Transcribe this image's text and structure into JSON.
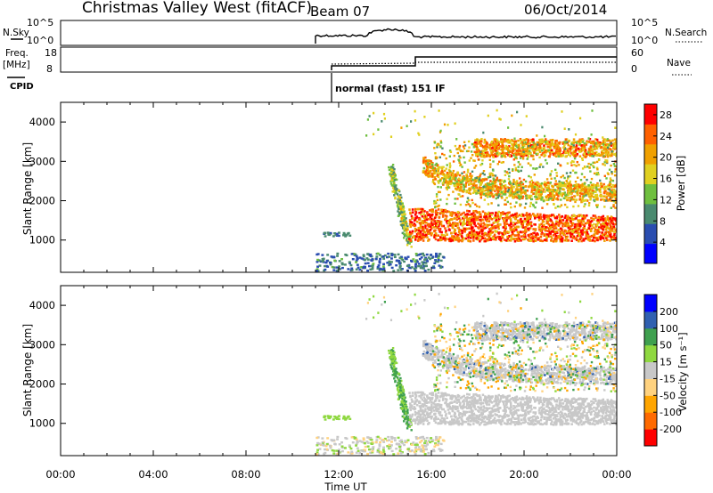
{
  "header": {
    "title": "Christmas Valley West (fitACF)",
    "beam": "Beam 07",
    "date": "06/Oct/2014"
  },
  "strip_panels": {
    "nsky_label": "N.Sky",
    "nsky_ticks": [
      "10^5",
      "10^0"
    ],
    "nsearch_label": "N.Search",
    "nsearch_ticks": [
      "10^5",
      "10^0"
    ],
    "freq_label_line1": "Freq.",
    "freq_label_line2": "[MHz]",
    "freq_ticks": [
      "18",
      "8"
    ],
    "nave_label": "Nave",
    "nave_ticks": [
      "60",
      "0"
    ],
    "cpid_label": "CPID",
    "cpid_text": "normal (fast) 151 IF"
  },
  "colors": {
    "power_scale": [
      "#0000ff",
      "#2a4db0",
      "#4a8a6f",
      "#6fbf3f",
      "#e0d020",
      "#f0a000",
      "#ff6000",
      "#ff0000"
    ],
    "velocity_scale": [
      "#ff0000",
      "#ff6a00",
      "#ffa500",
      "#ffd27f",
      "#c8c8c8",
      "#8fd840",
      "#3fa04f",
      "#3060b0",
      "#0000ff"
    ]
  },
  "chart_data": [
    {
      "type": "heatmap",
      "name": "power",
      "xlabel": "",
      "ylabel": "Slant Range [km]",
      "xlim": [
        "00:00",
        "24:00"
      ],
      "ylim": [
        180,
        4500
      ],
      "yticks": [
        1000,
        2000,
        3000,
        4000
      ],
      "colorbar_label": "Power [dB]",
      "colorbar_ticks": [
        4,
        8,
        12,
        16,
        20,
        24,
        28
      ],
      "colorbar_range": [
        0,
        30
      ],
      "data_start": "11:00",
      "data_end": "24:00",
      "features": [
        {
          "desc": "near-range scatter",
          "t": [
            11.0,
            16.5
          ],
          "range": [
            200,
            600
          ],
          "power": 8
        },
        {
          "desc": "patch",
          "t": [
            11.3,
            12.5
          ],
          "range": [
            1080,
            1200
          ],
          "power": 8
        },
        {
          "desc": "strong band",
          "t": [
            15.0,
            24.0
          ],
          "range": [
            900,
            1800
          ],
          "power": 26
        },
        {
          "desc": "upper band",
          "t": [
            16.5,
            24.0
          ],
          "range": [
            2000,
            2600
          ],
          "power": 22
        },
        {
          "desc": "top band",
          "t": [
            18.0,
            24.0
          ],
          "range": [
            3100,
            3500
          ],
          "power": 24
        }
      ]
    },
    {
      "type": "heatmap",
      "name": "velocity",
      "xlabel": "Time UT",
      "ylabel": "Slant Range [km]",
      "xlim": [
        "00:00",
        "24:00"
      ],
      "ylim": [
        180,
        4500
      ],
      "yticks": [
        1000,
        2000,
        3000,
        4000
      ],
      "xticks": [
        "00:00",
        "04:00",
        "08:00",
        "12:00",
        "16:00",
        "20:00",
        "00:00"
      ],
      "colorbar_label": "Velocity [m s⁻¹]",
      "colorbar_ticks": [
        200,
        100,
        50,
        15,
        -15,
        -50,
        -100,
        -200
      ],
      "colorbar_range": [
        -250,
        250
      ],
      "data_start": "11:00",
      "data_end": "24:00"
    }
  ]
}
